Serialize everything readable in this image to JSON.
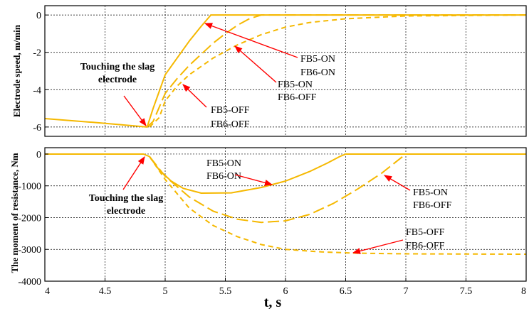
{
  "colors": {
    "curve": "#f5b800",
    "arrow": "#ff0000",
    "grid": "#000000",
    "frame": "#000000"
  },
  "chart_data": [
    {
      "type": "line",
      "ylabel": "Electrode speed, m/min",
      "xlim": [
        4,
        8
      ],
      "ylim": [
        -6.5,
        0.5
      ],
      "yticks": [
        0,
        -2,
        -4,
        -6
      ],
      "ytick_labels": [
        "0",
        "-2",
        "-4",
        "-6"
      ],
      "grid": true,
      "series": [
        {
          "label": "FB5-ON FB6-ON",
          "style": "solid",
          "x": [
            4.0,
            4.4,
            4.8,
            4.85,
            4.9,
            5.0,
            5.1,
            5.2,
            5.3,
            5.38,
            8.0
          ],
          "y": [
            -5.55,
            -5.75,
            -5.97,
            -6.0,
            -5.0,
            -3.2,
            -2.3,
            -1.4,
            -0.6,
            0.0,
            0.0
          ]
        },
        {
          "label": "FB5-ON FB6-OFF",
          "style": "long-dash",
          "x": [
            4.85,
            4.9,
            5.0,
            5.1,
            5.2,
            5.3,
            5.4,
            5.5,
            5.6,
            5.7,
            5.8,
            8.0
          ],
          "y": [
            -6.0,
            -5.7,
            -4.2,
            -3.4,
            -2.7,
            -2.1,
            -1.5,
            -1.0,
            -0.55,
            -0.2,
            0.0,
            0.0
          ]
        },
        {
          "label": "FB5-OFF FB6-OFF",
          "style": "short-dash",
          "x": [
            4.87,
            4.95,
            5.0,
            5.1,
            5.2,
            5.4,
            5.6,
            5.8,
            6.0,
            6.2,
            6.5,
            7.0,
            8.0
          ],
          "y": [
            -6.0,
            -5.5,
            -4.6,
            -3.8,
            -3.2,
            -2.3,
            -1.6,
            -1.05,
            -0.65,
            -0.4,
            -0.2,
            -0.05,
            0.0
          ]
        }
      ],
      "annotations": [
        {
          "text": [
            "Touching the slag",
            "electrode"
          ],
          "x": 4.83,
          "y": -6.0
        },
        {
          "text": [
            "FB5-ON",
            "FB6-ON"
          ],
          "x": 5.32,
          "y": -0.55
        },
        {
          "text": [
            "FB5-ON",
            "FB6-OFF"
          ],
          "x": 5.58,
          "y": -1.8
        },
        {
          "text": [
            "FB5-OFF",
            "FB6-OFF"
          ],
          "x": 4.98,
          "y": -3.9
        }
      ]
    },
    {
      "type": "line",
      "ylabel": "The moment of resistance, Nm",
      "xlabel": "t, s",
      "xlim": [
        4,
        8
      ],
      "ylim": [
        -4000,
        200
      ],
      "xticks": [
        4,
        4.5,
        5,
        5.5,
        6,
        6.5,
        7,
        7.5,
        8
      ],
      "xtick_labels": [
        "4",
        "4.5",
        "5",
        "5.5",
        "6",
        "6.5",
        "7",
        "7.5",
        "8"
      ],
      "yticks": [
        0,
        -1000,
        -2000,
        -3000,
        -4000
      ],
      "ytick_labels": [
        "0",
        "-1000",
        "-2000",
        "-3000",
        "-4000"
      ],
      "grid": true,
      "series": [
        {
          "label": "FB5-ON FB6-ON",
          "style": "solid",
          "x": [
            4.0,
            4.82,
            4.87,
            4.95,
            5.05,
            5.15,
            5.3,
            5.55,
            5.8,
            6.0,
            6.2,
            6.35,
            6.45,
            6.5,
            8.0
          ],
          "y": [
            0,
            0,
            -80,
            -500,
            -850,
            -1080,
            -1230,
            -1220,
            -1050,
            -850,
            -550,
            -280,
            -80,
            0,
            0
          ]
        },
        {
          "label": "FB5-ON FB6-OFF",
          "style": "long-dash",
          "x": [
            4.87,
            5.0,
            5.2,
            5.4,
            5.6,
            5.8,
            6.0,
            6.2,
            6.4,
            6.6,
            6.8,
            6.95,
            7.0,
            8.0
          ],
          "y": [
            -80,
            -700,
            -1350,
            -1800,
            -2050,
            -2150,
            -2100,
            -1900,
            -1550,
            -1100,
            -600,
            -150,
            0,
            0
          ]
        },
        {
          "label": "FB5-OFF FB6-OFF",
          "style": "short-dash",
          "x": [
            4.87,
            5.0,
            5.2,
            5.4,
            5.6,
            5.8,
            6.0,
            6.3,
            6.6,
            7.0,
            8.0
          ],
          "y": [
            -80,
            -800,
            -1700,
            -2250,
            -2600,
            -2850,
            -3000,
            -3080,
            -3120,
            -3140,
            -3150
          ]
        }
      ],
      "annotations": [
        {
          "text": [
            "Touching the slag",
            "electrode"
          ],
          "x": 4.86,
          "y": -20
        },
        {
          "text": [
            "FB5-ON",
            "FB6-ON"
          ],
          "x": 5.9,
          "y": -1000
        },
        {
          "text": [
            "FB5-ON",
            "FB6-OFF"
          ],
          "x": 6.83,
          "y": -700
        },
        {
          "text": [
            "FB5-OFF",
            "FB6-OFF"
          ],
          "x": 6.55,
          "y": -3080
        }
      ]
    }
  ]
}
